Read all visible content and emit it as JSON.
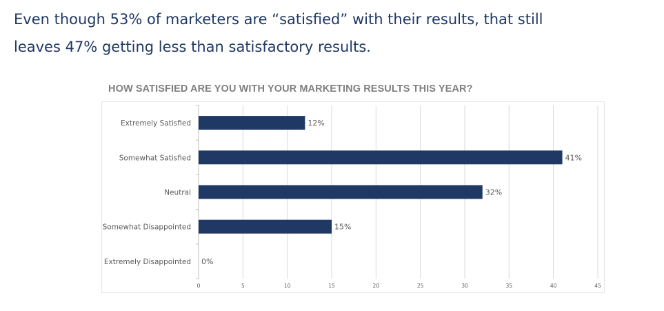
{
  "headline": {
    "line1": "Even though 53% of marketers are “satisfied” with their results, that still",
    "line2": "leaves 47% getting less than satisfactory results."
  },
  "colors": {
    "bar": "#1f3864",
    "headline": "#1f3864",
    "title": "#7f7f7f",
    "grid": "#d9d9d9"
  },
  "chart_data": {
    "type": "bar",
    "orientation": "horizontal",
    "title": "HOW SATISFIED  ARE YOU WITH YOUR MARKETING  RESULTS THIS YEAR?",
    "categories": [
      "Extremely Satisfied",
      "Somewhat Satisfied",
      "Neutral",
      "Somewhat Disappointed",
      "Extremely Disappointed"
    ],
    "values": [
      12,
      41,
      32,
      15,
      0
    ],
    "data_labels": [
      "12%",
      "41%",
      "32%",
      "15%",
      "0%"
    ],
    "xlim": [
      0,
      45
    ],
    "xticks": [
      "0",
      "5",
      "10",
      "15",
      "20",
      "25",
      "30",
      "35",
      "40",
      "45"
    ],
    "grid": "vertical",
    "legend": "none"
  }
}
